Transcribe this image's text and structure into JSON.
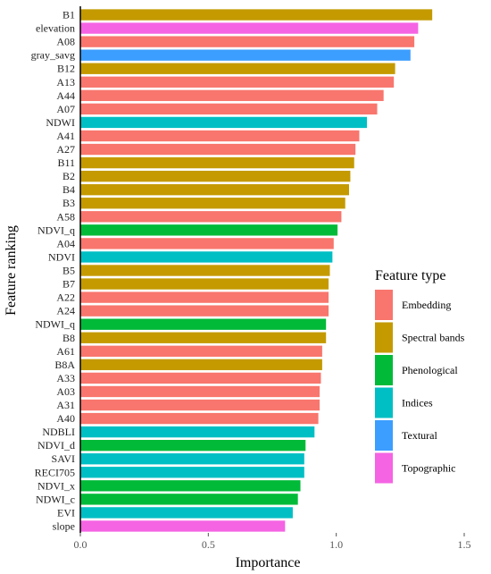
{
  "chart_data": {
    "type": "bar",
    "orientation": "horizontal",
    "xlabel": "Importance",
    "ylabel": "Feature ranking",
    "xlim": [
      0,
      1.5
    ],
    "xticks": [
      0.0,
      0.5,
      1.0,
      1.5
    ],
    "xtick_labels": [
      "0.0",
      "0.5",
      "1.0",
      "1.5"
    ],
    "grid": false,
    "legend": {
      "title": "Feature type",
      "position": "right",
      "entries": [
        {
          "name": "Embedding",
          "color": "#F8766D"
        },
        {
          "name": "Spectral bands",
          "color": "#C49A00"
        },
        {
          "name": "Phenological",
          "color": "#00BA38"
        },
        {
          "name": "Indices",
          "color": "#00BFC4"
        },
        {
          "name": "Textural",
          "color": "#3C9EFF"
        },
        {
          "name": "Topographic",
          "color": "#F564E3"
        }
      ]
    },
    "bars": [
      {
        "label": "B1",
        "value": 1.375,
        "type": "Spectral bands"
      },
      {
        "label": "elevation",
        "value": 1.32,
        "type": "Topographic"
      },
      {
        "label": "A08",
        "value": 1.305,
        "type": "Embedding"
      },
      {
        "label": "gray_savg",
        "value": 1.29,
        "type": "Textural"
      },
      {
        "label": "B12",
        "value": 1.23,
        "type": "Spectral bands"
      },
      {
        "label": "A13",
        "value": 1.225,
        "type": "Embedding"
      },
      {
        "label": "A44",
        "value": 1.185,
        "type": "Embedding"
      },
      {
        "label": "A07",
        "value": 1.16,
        "type": "Embedding"
      },
      {
        "label": "NDWI",
        "value": 1.12,
        "type": "Indices"
      },
      {
        "label": "A41",
        "value": 1.09,
        "type": "Embedding"
      },
      {
        "label": "A27",
        "value": 1.075,
        "type": "Embedding"
      },
      {
        "label": "B11",
        "value": 1.07,
        "type": "Spectral bands"
      },
      {
        "label": "B2",
        "value": 1.055,
        "type": "Spectral bands"
      },
      {
        "label": "B4",
        "value": 1.05,
        "type": "Spectral bands"
      },
      {
        "label": "B3",
        "value": 1.035,
        "type": "Spectral bands"
      },
      {
        "label": "A58",
        "value": 1.02,
        "type": "Embedding"
      },
      {
        "label": "NDVI_q",
        "value": 1.005,
        "type": "Phenological"
      },
      {
        "label": "A04",
        "value": 0.99,
        "type": "Embedding"
      },
      {
        "label": "NDVI",
        "value": 0.985,
        "type": "Indices"
      },
      {
        "label": "B5",
        "value": 0.975,
        "type": "Spectral bands"
      },
      {
        "label": "B7",
        "value": 0.97,
        "type": "Spectral bands"
      },
      {
        "label": "A22",
        "value": 0.97,
        "type": "Embedding"
      },
      {
        "label": "A24",
        "value": 0.97,
        "type": "Embedding"
      },
      {
        "label": "NDWI_q",
        "value": 0.96,
        "type": "Phenological"
      },
      {
        "label": "B8",
        "value": 0.96,
        "type": "Spectral bands"
      },
      {
        "label": "A61",
        "value": 0.945,
        "type": "Embedding"
      },
      {
        "label": "B8A",
        "value": 0.945,
        "type": "Spectral bands"
      },
      {
        "label": "A33",
        "value": 0.94,
        "type": "Embedding"
      },
      {
        "label": "A03",
        "value": 0.935,
        "type": "Embedding"
      },
      {
        "label": "A31",
        "value": 0.935,
        "type": "Embedding"
      },
      {
        "label": "A40",
        "value": 0.93,
        "type": "Embedding"
      },
      {
        "label": "NDBLI",
        "value": 0.915,
        "type": "Indices"
      },
      {
        "label": "NDVI_d",
        "value": 0.88,
        "type": "Phenological"
      },
      {
        "label": "SAVI",
        "value": 0.875,
        "type": "Indices"
      },
      {
        "label": "RECI705",
        "value": 0.875,
        "type": "Indices"
      },
      {
        "label": "NDVI_x",
        "value": 0.86,
        "type": "Phenological"
      },
      {
        "label": "NDWI_c",
        "value": 0.85,
        "type": "Phenological"
      },
      {
        "label": "EVI",
        "value": 0.83,
        "type": "Indices"
      },
      {
        "label": "slope",
        "value": 0.8,
        "type": "Topographic"
      }
    ]
  }
}
